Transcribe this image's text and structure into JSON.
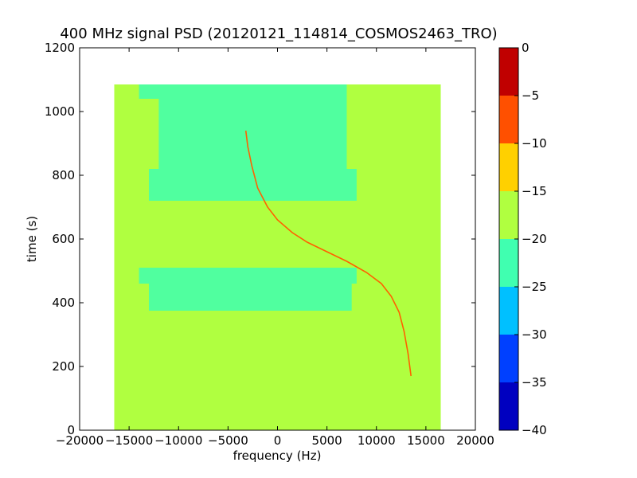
{
  "chart_data": {
    "type": "heatmap",
    "title": "400 MHz signal PSD (20120121_114814_COSMOS2463_TRO)",
    "xlabel": "frequency (Hz)",
    "ylabel": "time (s)",
    "xlim": [
      -20000,
      20000
    ],
    "ylim": [
      0,
      1200
    ],
    "xticks": [
      -20000,
      -15000,
      -10000,
      -5000,
      0,
      5000,
      10000,
      15000,
      20000
    ],
    "xtick_labels": [
      "−20000",
      "−15000",
      "−10000",
      "−5000",
      "0",
      "5000",
      "10000",
      "15000",
      "20000"
    ],
    "yticks": [
      0,
      200,
      400,
      600,
      800,
      1000,
      1200
    ],
    "ytick_labels": [
      "0",
      "200",
      "400",
      "600",
      "800",
      "1000",
      "1200"
    ],
    "data_extent": {
      "x": [
        -16500,
        16500
      ],
      "y": [
        0,
        1085
      ]
    },
    "background_level": "-20 to -15 dB",
    "bands": [
      {
        "y": [
          1040,
          1085
        ],
        "x": [
          -14000,
          7000
        ],
        "level": "-25 to -20 dB"
      },
      {
        "y": [
          820,
          1040
        ],
        "x": [
          -12000,
          7000
        ],
        "level": "-25 to -20 dB"
      },
      {
        "y": [
          720,
          820
        ],
        "x": [
          -13000,
          8000
        ],
        "level": "-25 to -20 dB"
      },
      {
        "y": [
          460,
          510
        ],
        "x": [
          -14000,
          8000
        ],
        "level": "-25 to -20 dB"
      },
      {
        "y": [
          375,
          460
        ],
        "x": [
          -13000,
          7500
        ],
        "level": "-25 to -20 dB"
      }
    ],
    "signal_trace": {
      "name": "Doppler curve",
      "points": [
        [
          -3200,
          940
        ],
        [
          -3000,
          890
        ],
        [
          -2600,
          830
        ],
        [
          -2000,
          760
        ],
        [
          -1000,
          700
        ],
        [
          0,
          660
        ],
        [
          1500,
          620
        ],
        [
          3000,
          590
        ],
        [
          5000,
          560
        ],
        [
          7000,
          530
        ],
        [
          9000,
          495
        ],
        [
          10500,
          460
        ],
        [
          11500,
          420
        ],
        [
          12300,
          370
        ],
        [
          12800,
          310
        ],
        [
          13200,
          240
        ],
        [
          13500,
          170
        ]
      ]
    },
    "colorbar": {
      "range": [
        -40,
        0
      ],
      "ticks": [
        0,
        -5,
        -10,
        -15,
        -20,
        -25,
        -30,
        -35,
        -40
      ],
      "tick_labels": [
        "0",
        "−5",
        "−10",
        "−15",
        "−20",
        "−25",
        "−30",
        "−35",
        "−40"
      ],
      "levels": [
        {
          "from": -40,
          "to": -35,
          "color": "#0000c0"
        },
        {
          "from": -35,
          "to": -30,
          "color": "#0040ff"
        },
        {
          "from": -30,
          "to": -25,
          "color": "#00c0ff"
        },
        {
          "from": -25,
          "to": -20,
          "color": "#40ffb0"
        },
        {
          "from": -20,
          "to": -15,
          "color": "#b0ff40"
        },
        {
          "from": -15,
          "to": -10,
          "color": "#ffd000"
        },
        {
          "from": -10,
          "to": -5,
          "color": "#ff5000"
        },
        {
          "from": -5,
          "to": 0,
          "color": "#c00000"
        }
      ]
    },
    "grid": false
  }
}
